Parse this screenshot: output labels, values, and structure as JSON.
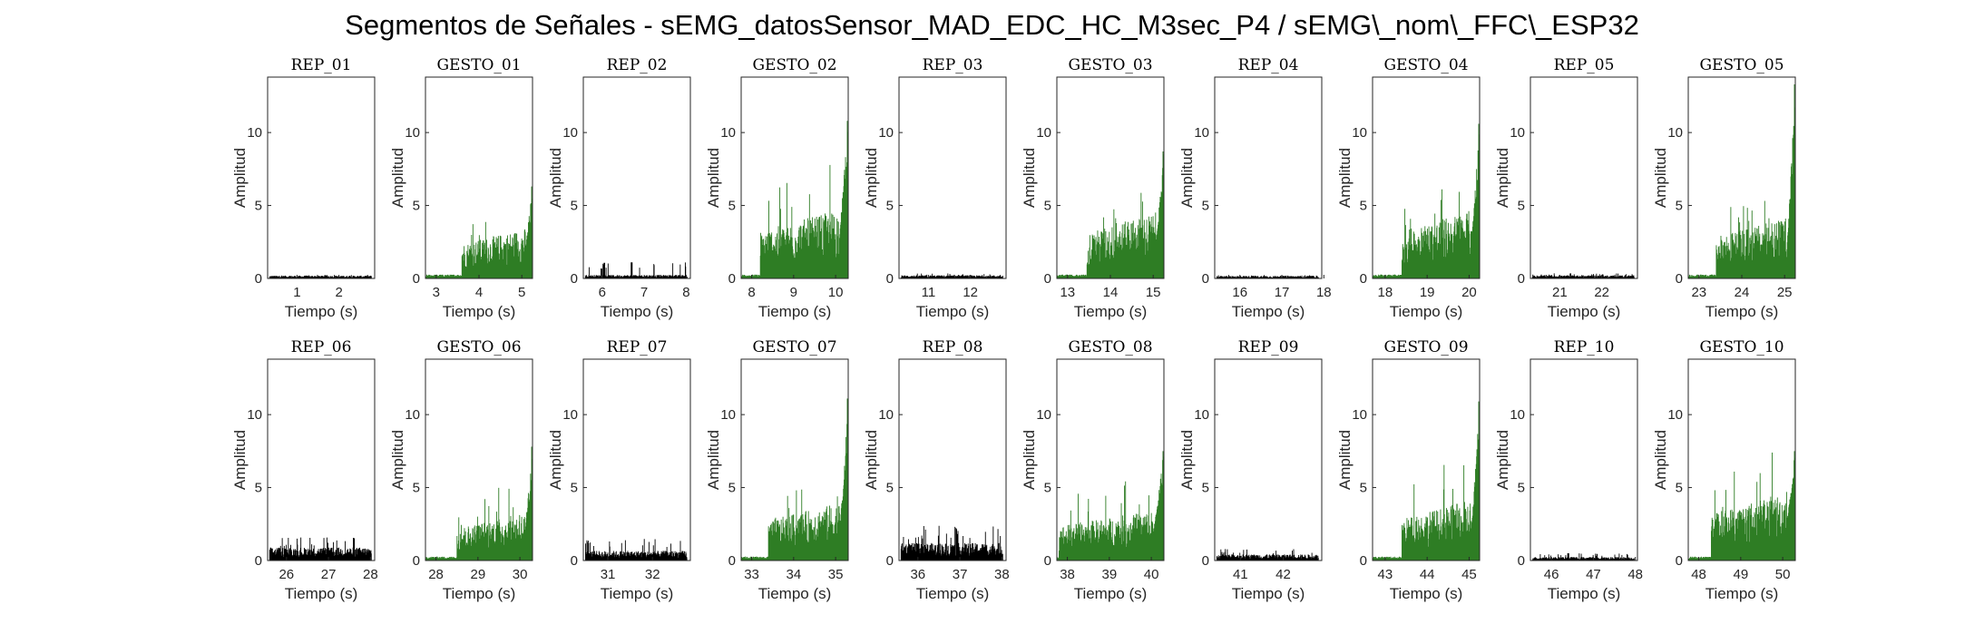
{
  "figure_title": "Segmentos de Señales - sEMG_datosSensor_MAD_EDC_HC_M3sec_P4 / sEMG\\_nom\\_FFC\\_ESP32",
  "colors": {
    "rep": "#000000",
    "gesto": "#2e7d24",
    "axis": "#262626"
  },
  "chart_data": [
    {
      "type": "bar",
      "title": "REP_01",
      "xlabel": "Tiempo (s)",
      "ylabel": "Amplitud",
      "xlim": [
        0.3,
        2.85
      ],
      "ylim": [
        0,
        13.8
      ],
      "xticks": [
        1,
        2
      ],
      "yticks": [
        0,
        5,
        10
      ],
      "kind": "rep",
      "level": 0.16,
      "peak": 0.25
    },
    {
      "type": "bar",
      "title": "GESTO_01",
      "xlabel": "Tiempo (s)",
      "ylabel": "Amplitud",
      "xlim": [
        2.75,
        5.25
      ],
      "ylim": [
        0,
        13.8
      ],
      "xticks": [
        3,
        4,
        5
      ],
      "yticks": [
        0,
        5,
        10
      ],
      "kind": "gesto",
      "onset": 3.6,
      "level": 1.9,
      "peak": 6.3
    },
    {
      "type": "bar",
      "title": "REP_02",
      "xlabel": "Tiempo (s)",
      "ylabel": "Amplitud",
      "xlim": [
        5.55,
        8.1
      ],
      "ylim": [
        0,
        13.8
      ],
      "xticks": [
        6,
        7,
        8
      ],
      "yticks": [
        0,
        5,
        10
      ],
      "kind": "rep",
      "level": 0.2,
      "peak": 1.1,
      "peak_x": 6.7
    },
    {
      "type": "bar",
      "title": "GESTO_02",
      "xlabel": "Tiempo (s)",
      "ylabel": "Amplitud",
      "xlim": [
        7.75,
        10.3
      ],
      "ylim": [
        0,
        13.8
      ],
      "xticks": [
        8,
        9,
        10
      ],
      "yticks": [
        0,
        5,
        10
      ],
      "kind": "gesto",
      "onset": 8.2,
      "level": 2.6,
      "peak": 10.8
    },
    {
      "type": "bar",
      "title": "REP_03",
      "xlabel": "Tiempo (s)",
      "ylabel": "Amplitud",
      "xlim": [
        10.3,
        12.85
      ],
      "ylim": [
        0,
        13.8
      ],
      "xticks": [
        11,
        12
      ],
      "yticks": [
        0,
        5,
        10
      ],
      "kind": "rep",
      "level": 0.18,
      "peak": 0.35
    },
    {
      "type": "bar",
      "title": "GESTO_03",
      "xlabel": "Tiempo (s)",
      "ylabel": "Amplitud",
      "xlim": [
        12.75,
        15.25
      ],
      "ylim": [
        0,
        13.8
      ],
      "xticks": [
        13,
        14,
        15
      ],
      "yticks": [
        0,
        5,
        10
      ],
      "kind": "gesto",
      "onset": 13.45,
      "level": 2.5,
      "peak": 8.7
    },
    {
      "type": "bar",
      "title": "REP_04",
      "xlabel": "Tiempo (s)",
      "ylabel": "Amplitud",
      "xlim": [
        15.4,
        17.95
      ],
      "ylim": [
        0,
        13.8
      ],
      "xticks": [
        16,
        17,
        18
      ],
      "yticks": [
        0,
        5,
        10
      ],
      "kind": "rep",
      "level": 0.15,
      "peak": 0.25
    },
    {
      "type": "bar",
      "title": "GESTO_04",
      "xlabel": "Tiempo (s)",
      "ylabel": "Amplitud",
      "xlim": [
        17.7,
        20.25
      ],
      "ylim": [
        0,
        13.8
      ],
      "xticks": [
        18,
        19,
        20
      ],
      "yticks": [
        0,
        5,
        10
      ],
      "kind": "gesto",
      "onset": 18.4,
      "level": 2.6,
      "peak": 10.6
    },
    {
      "type": "bar",
      "title": "REP_05",
      "xlabel": "Tiempo (s)",
      "ylabel": "Amplitud",
      "xlim": [
        20.3,
        22.85
      ],
      "ylim": [
        0,
        13.8
      ],
      "xticks": [
        21,
        22
      ],
      "yticks": [
        0,
        5,
        10
      ],
      "kind": "rep",
      "level": 0.18,
      "peak": 0.35
    },
    {
      "type": "bar",
      "title": "GESTO_05",
      "xlabel": "Tiempo (s)",
      "ylabel": "Amplitud",
      "xlim": [
        22.75,
        25.25
      ],
      "ylim": [
        0,
        13.8
      ],
      "xticks": [
        23,
        24,
        25
      ],
      "yticks": [
        0,
        5,
        10
      ],
      "kind": "gesto",
      "onset": 23.4,
      "level": 2.3,
      "peak": 13.3
    },
    {
      "type": "bar",
      "title": "REP_06",
      "xlabel": "Tiempo (s)",
      "ylabel": "Amplitud",
      "xlim": [
        25.55,
        28.1
      ],
      "ylim": [
        0,
        13.8
      ],
      "xticks": [
        26,
        27,
        28
      ],
      "yticks": [
        0,
        5,
        10
      ],
      "kind": "rep",
      "level": 0.75,
      "peak": 1.6
    },
    {
      "type": "bar",
      "title": "GESTO_06",
      "xlabel": "Tiempo (s)",
      "ylabel": "Amplitud",
      "xlim": [
        27.75,
        30.3
      ],
      "ylim": [
        0,
        13.8
      ],
      "xticks": [
        28,
        29,
        30
      ],
      "yticks": [
        0,
        5,
        10
      ],
      "kind": "gesto",
      "onset": 28.5,
      "level": 1.8,
      "peak": 7.8
    },
    {
      "type": "bar",
      "title": "REP_07",
      "xlabel": "Tiempo (s)",
      "ylabel": "Amplitud",
      "xlim": [
        30.45,
        32.85
      ],
      "ylim": [
        0,
        13.8
      ],
      "xticks": [
        31,
        32
      ],
      "yticks": [
        0,
        5,
        10
      ],
      "kind": "rep",
      "level": 0.55,
      "peak": 1.5
    },
    {
      "type": "bar",
      "title": "GESTO_07",
      "xlabel": "Tiempo (s)",
      "ylabel": "Amplitud",
      "xlim": [
        32.75,
        35.3
      ],
      "ylim": [
        0,
        13.8
      ],
      "xticks": [
        33,
        34,
        35
      ],
      "yticks": [
        0,
        5,
        10
      ],
      "kind": "gesto",
      "onset": 33.4,
      "level": 2.2,
      "peak": 11.1
    },
    {
      "type": "bar",
      "title": "REP_08",
      "xlabel": "Tiempo (s)",
      "ylabel": "Amplitud",
      "xlim": [
        35.55,
        38.1
      ],
      "ylim": [
        0,
        13.8
      ],
      "xticks": [
        36,
        37,
        38
      ],
      "yticks": [
        0,
        5,
        10
      ],
      "kind": "rep",
      "level": 1.0,
      "peak": 2.4
    },
    {
      "type": "bar",
      "title": "GESTO_08",
      "xlabel": "Tiempo (s)",
      "ylabel": "Amplitud",
      "xlim": [
        37.75,
        40.3
      ],
      "ylim": [
        0,
        13.8
      ],
      "xticks": [
        38,
        39,
        40
      ],
      "yticks": [
        0,
        5,
        10
      ],
      "kind": "gesto",
      "onset": 37.8,
      "level": 1.9,
      "peak": 7.5
    },
    {
      "type": "bar",
      "title": "REP_09",
      "xlabel": "Tiempo (s)",
      "ylabel": "Amplitud",
      "xlim": [
        40.4,
        42.9
      ],
      "ylim": [
        0,
        13.8
      ],
      "xticks": [
        41,
        42
      ],
      "yticks": [
        0,
        5,
        10
      ],
      "kind": "rep",
      "level": 0.35,
      "peak": 0.8
    },
    {
      "type": "bar",
      "title": "GESTO_09",
      "xlabel": "Tiempo (s)",
      "ylabel": "Amplitud",
      "xlim": [
        42.7,
        45.25
      ],
      "ylim": [
        0,
        13.8
      ],
      "xticks": [
        43,
        44,
        45
      ],
      "yticks": [
        0,
        5,
        10
      ],
      "kind": "gesto",
      "onset": 43.4,
      "level": 2.3,
      "peak": 10.9
    },
    {
      "type": "bar",
      "title": "REP_10",
      "xlabel": "Tiempo (s)",
      "ylabel": "Amplitud",
      "xlim": [
        45.5,
        48.05
      ],
      "ylim": [
        0,
        13.8
      ],
      "xticks": [
        46,
        47,
        48
      ],
      "yticks": [
        0,
        5,
        10
      ],
      "kind": "rep",
      "level": 0.2,
      "peak": 0.5,
      "peak_x": 46.4
    },
    {
      "type": "bar",
      "title": "GESTO_10",
      "xlabel": "Tiempo (s)",
      "ylabel": "Amplitud",
      "xlim": [
        47.75,
        50.3
      ],
      "ylim": [
        0,
        13.8
      ],
      "xticks": [
        48,
        49,
        50
      ],
      "yticks": [
        0,
        5,
        10
      ],
      "kind": "gesto",
      "onset": 48.3,
      "level": 2.6,
      "peak": 7.5
    }
  ]
}
